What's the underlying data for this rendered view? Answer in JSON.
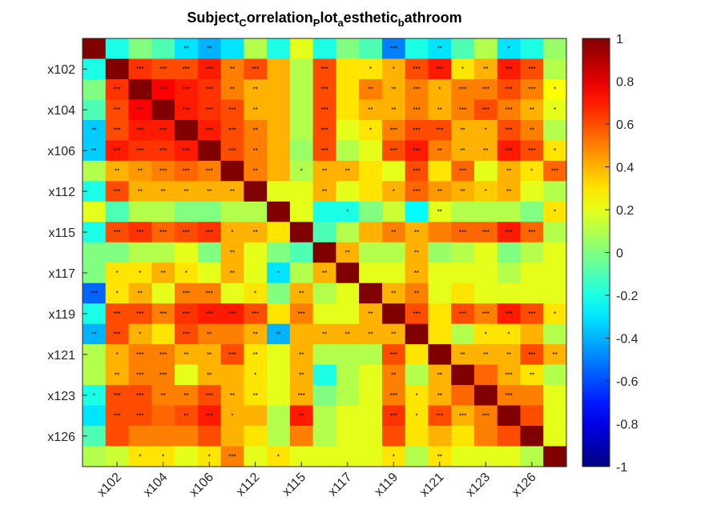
{
  "chart_data": {
    "type": "heatmap",
    "title": {
      "parts": [
        {
          "text": "Subject",
          "sub": false
        },
        {
          "text": "C",
          "sub": true
        },
        {
          "text": "orrelation",
          "sub": false
        },
        {
          "text": "P",
          "sub": true
        },
        {
          "text": "lot",
          "sub": false
        },
        {
          "text": "a",
          "sub": true
        },
        {
          "text": "esthetic",
          "sub": false
        },
        {
          "text": "b",
          "sub": true
        },
        {
          "text": "athroom",
          "sub": false
        }
      ]
    },
    "y_tick_labels": [
      "x102",
      "x104",
      "x106",
      "x112",
      "x115",
      "x117",
      "x119",
      "x121",
      "x123",
      "x126"
    ],
    "x_tick_labels": [
      "x102",
      "x104",
      "x106",
      "x112",
      "x115",
      "x117",
      "x119",
      "x121",
      "x123",
      "x126"
    ],
    "colorbar": {
      "colormap": "jet",
      "range": [
        -1,
        1
      ],
      "ticks": [
        "1",
        "0.8",
        "0.6",
        "0.4",
        "0.2",
        "0",
        "-0.2",
        "-0.4",
        "-0.6",
        "-0.8",
        "-1"
      ]
    },
    "matrix": [
      [
        1.0,
        -0.2,
        0.0,
        -0.1,
        -0.3,
        -0.4,
        -0.3,
        0.1,
        -0.2,
        0.2,
        -0.2,
        0.0,
        -0.1,
        -0.5,
        -0.2,
        -0.3,
        -0.1,
        0.1,
        -0.3,
        -0.2,
        0.05
      ],
      [
        -0.2,
        1.0,
        0.65,
        0.6,
        0.6,
        0.7,
        0.5,
        0.6,
        0.4,
        0.1,
        0.6,
        0.3,
        0.3,
        0.4,
        0.6,
        0.7,
        0.3,
        0.4,
        0.7,
        0.6,
        0.1
      ],
      [
        0.0,
        0.65,
        1.0,
        0.75,
        0.7,
        0.65,
        0.5,
        0.4,
        0.4,
        0.1,
        0.6,
        0.3,
        0.5,
        0.4,
        0.5,
        0.4,
        0.5,
        0.5,
        0.6,
        0.5,
        0.25
      ],
      [
        -0.1,
        0.6,
        0.75,
        1.0,
        0.7,
        0.65,
        0.6,
        0.4,
        0.4,
        0.1,
        0.6,
        0.3,
        0.4,
        0.4,
        0.5,
        0.4,
        0.5,
        0.6,
        0.5,
        0.4,
        0.2
      ],
      [
        -0.35,
        0.6,
        0.7,
        0.7,
        1.0,
        0.7,
        0.6,
        0.5,
        0.4,
        0.1,
        0.6,
        0.2,
        0.3,
        0.5,
        0.6,
        0.6,
        0.4,
        0.4,
        0.6,
        0.5,
        0.1
      ],
      [
        -0.35,
        0.7,
        0.65,
        0.65,
        0.7,
        1.0,
        0.6,
        0.5,
        0.4,
        0.05,
        0.6,
        0.1,
        0.2,
        0.6,
        0.7,
        0.5,
        0.4,
        0.4,
        0.7,
        0.6,
        0.3
      ],
      [
        0.1,
        0.4,
        0.45,
        0.5,
        0.55,
        0.5,
        1.0,
        0.5,
        0.4,
        0.1,
        0.4,
        0.4,
        0.3,
        0.2,
        0.6,
        0.3,
        0.55,
        0.2,
        0.4,
        0.3,
        0.55
      ],
      [
        -0.2,
        0.6,
        0.4,
        0.4,
        0.4,
        0.4,
        0.4,
        1.0,
        0.2,
        0.2,
        0.4,
        0.2,
        0.3,
        0.4,
        0.55,
        0.45,
        0.4,
        0.35,
        0.4,
        0.2,
        0.1
      ],
      [
        0.2,
        -0.1,
        0.1,
        0.1,
        0.0,
        0.0,
        0.1,
        0.1,
        1.0,
        0.2,
        -0.2,
        -0.2,
        0.0,
        0.15,
        -0.25,
        0.2,
        0.1,
        0.1,
        0.1,
        0.0,
        0.3
      ],
      [
        -0.2,
        0.6,
        0.65,
        0.55,
        0.6,
        0.65,
        0.4,
        0.4,
        0.3,
        1.0,
        -0.1,
        0.1,
        0.4,
        0.5,
        0.4,
        0.5,
        0.55,
        0.55,
        0.7,
        0.55,
        0.1
      ],
      [
        0.0,
        0.0,
        0.1,
        0.1,
        0.2,
        0.0,
        0.4,
        0.2,
        0.0,
        -0.1,
        1.0,
        0.4,
        0.1,
        0.1,
        0.4,
        0.05,
        0.1,
        0.2,
        0.0,
        0.1,
        0.2
      ],
      [
        0.0,
        0.3,
        0.3,
        0.4,
        0.3,
        0.2,
        0.4,
        0.2,
        -0.3,
        0.1,
        0.4,
        1.0,
        0.2,
        0.2,
        0.4,
        0.2,
        0.2,
        0.2,
        0.1,
        0.2,
        0.2
      ],
      [
        -0.55,
        0.3,
        0.4,
        0.2,
        0.5,
        0.5,
        0.2,
        0.3,
        0.0,
        0.4,
        0.1,
        0.2,
        1.0,
        0.4,
        0.5,
        0.2,
        0.3,
        0.2,
        0.2,
        0.2,
        0.2
      ],
      [
        -0.2,
        0.6,
        0.6,
        0.5,
        0.65,
        0.7,
        0.7,
        0.6,
        0.3,
        0.5,
        0.2,
        0.2,
        0.4,
        1.0,
        0.6,
        0.3,
        0.6,
        0.5,
        0.7,
        0.6,
        0.3
      ],
      [
        -0.4,
        0.6,
        0.4,
        0.3,
        0.6,
        0.5,
        0.5,
        0.4,
        -0.4,
        0.4,
        0.4,
        0.4,
        0.4,
        0.4,
        1.0,
        0.3,
        0.1,
        0.3,
        0.3,
        0.4,
        0.1
      ],
      [
        0.1,
        0.4,
        0.5,
        0.5,
        0.4,
        0.4,
        0.6,
        0.3,
        0.2,
        0.4,
        0.1,
        0.1,
        0.1,
        0.6,
        0.3,
        1.0,
        0.4,
        0.4,
        0.4,
        0.6,
        0.4
      ],
      [
        0.1,
        0.4,
        0.5,
        0.5,
        0.2,
        0.4,
        0.4,
        0.3,
        0.2,
        0.4,
        -0.2,
        0.1,
        0.2,
        0.5,
        0.1,
        0.4,
        1.0,
        0.55,
        0.4,
        0.3,
        0.1
      ],
      [
        -0.2,
        0.6,
        0.6,
        0.5,
        0.5,
        0.6,
        0.4,
        0.3,
        0.2,
        0.4,
        0.0,
        0.1,
        0.2,
        0.5,
        0.3,
        0.4,
        0.55,
        1.0,
        0.5,
        0.5,
        0.2
      ],
      [
        -0.3,
        0.6,
        0.6,
        0.55,
        0.6,
        0.7,
        0.4,
        0.4,
        0.1,
        0.7,
        0.1,
        0.2,
        0.2,
        0.65,
        0.3,
        0.6,
        0.4,
        0.5,
        1.0,
        0.6,
        0.2
      ],
      [
        -0.1,
        0.6,
        0.5,
        0.5,
        0.5,
        0.6,
        0.4,
        0.3,
        0.1,
        0.5,
        0.1,
        0.2,
        0.2,
        0.6,
        0.3,
        0.4,
        0.3,
        0.5,
        0.6,
        1.0,
        0.2
      ],
      [
        0.1,
        0.15,
        0.3,
        0.3,
        0.2,
        0.3,
        0.5,
        0.2,
        0.3,
        0.2,
        0.2,
        0.2,
        0.2,
        0.3,
        0.1,
        0.3,
        0.2,
        0.2,
        0.2,
        0.1,
        1.0
      ]
    ],
    "significance": [
      [
        "",
        "",
        "",
        "",
        "**",
        "**",
        "",
        "",
        "",
        "",
        "",
        "",
        "",
        "***",
        "",
        "**",
        "",
        "",
        "*",
        "",
        ""
      ],
      [
        "",
        "",
        "***",
        "***",
        "***",
        "***",
        "**",
        "***",
        "",
        "",
        "***",
        "",
        "*",
        "*",
        "***",
        "***",
        "*",
        "**",
        "***",
        "***",
        ""
      ],
      [
        "",
        "***",
        "",
        "***",
        "***",
        "***",
        "**",
        "**",
        "",
        "",
        "***",
        "",
        "**",
        "**",
        "***",
        "*",
        "***",
        "***",
        "***",
        "***",
        "*"
      ],
      [
        "",
        "***",
        "***",
        "",
        "***",
        "***",
        "***",
        "**",
        "",
        "",
        "***",
        "",
        "**",
        "**",
        "***",
        "**",
        "***",
        "***",
        "***",
        "**",
        "*"
      ],
      [
        "**",
        "***",
        "***",
        "***",
        "",
        "***",
        "***",
        "**",
        "",
        "",
        "***",
        "",
        "*",
        "***",
        "***",
        "***",
        "**",
        "*",
        "***",
        "**",
        ""
      ],
      [
        "**",
        "***",
        "***",
        "***",
        "***",
        "",
        "***",
        "**",
        "",
        "",
        "***",
        "",
        "",
        "***",
        "***",
        "**",
        "**",
        "**",
        "***",
        "***",
        "*"
      ],
      [
        "",
        "**",
        "**",
        "***",
        "***",
        "***",
        "",
        "**",
        "",
        "*",
        "**",
        "**",
        "",
        "",
        "***",
        "",
        "***",
        "",
        "**",
        "*",
        "***"
      ],
      [
        "",
        "***",
        "**",
        "**",
        "**",
        "**",
        "**",
        "",
        "",
        "",
        "**",
        "",
        "",
        "*",
        "***",
        "**",
        "**",
        "*",
        "**",
        "",
        ""
      ],
      [
        "",
        "",
        "",
        "",
        "",
        "",
        "",
        "",
        "",
        "",
        "",
        "*",
        "",
        "",
        "",
        "**",
        "",
        "",
        "",
        "",
        "*"
      ],
      [
        "",
        "***",
        "***",
        "***",
        "***",
        "***",
        "*",
        "**",
        "",
        "",
        "",
        "",
        "",
        "**",
        "**",
        "",
        "***",
        "***",
        "***",
        "***",
        ""
      ],
      [
        "",
        "",
        "",
        "",
        "",
        "",
        "**",
        "",
        "",
        "",
        "",
        "**",
        "",
        "",
        "**",
        "",
        "",
        "",
        "",
        "",
        ""
      ],
      [
        "",
        "*",
        "*",
        "**",
        "*",
        "",
        "**",
        "",
        "*",
        "",
        "**",
        "",
        "",
        "",
        "**",
        "",
        "",
        "",
        "",
        "",
        ""
      ],
      [
        "***",
        "*",
        "**",
        "",
        "***",
        "***",
        "",
        "*",
        "",
        "**",
        "",
        "",
        "",
        "**",
        "**",
        "",
        "",
        "",
        "",
        "",
        ""
      ],
      [
        "",
        "***",
        "***",
        "***",
        "***",
        "***",
        "***",
        "***",
        "",
        "***",
        "",
        "",
        "**",
        "",
        "***",
        "",
        "***",
        "***",
        "***",
        "***",
        "*"
      ],
      [
        "**",
        "***",
        "*",
        "",
        "***",
        "**",
        "",
        "**",
        "**",
        "",
        "**",
        "**",
        "**",
        "**",
        "",
        "",
        "",
        "*",
        "*",
        "",
        ""
      ],
      [
        "",
        "*",
        "***",
        "***",
        "**",
        "**",
        "***",
        "**",
        "",
        "**",
        "",
        "",
        "",
        "***",
        "",
        "",
        "**",
        "**",
        "**",
        "***",
        "**"
      ],
      [
        "",
        "**",
        "***",
        "***",
        "",
        "**",
        "",
        "*",
        "",
        "**",
        "",
        "",
        "",
        "**",
        "",
        "**",
        "",
        "",
        "***",
        "**",
        ""
      ],
      [
        "*",
        "***",
        "***",
        "**",
        "**",
        "***",
        "**",
        "**",
        "",
        "***",
        "",
        "",
        "",
        "***",
        "*",
        "**",
        "",
        "",
        "***",
        "",
        ""
      ],
      [
        "",
        "***",
        "***",
        "",
        "**",
        "***",
        "*",
        "",
        "",
        "**",
        "",
        "",
        "",
        "***",
        "*",
        "***",
        "***",
        "***",
        "",
        "",
        ""
      ],
      [
        "",
        "",
        "",
        "",
        "",
        "",
        "",
        "",
        "",
        "",
        "",
        "",
        "",
        "",
        "",
        "",
        "",
        "",
        "",
        "",
        ""
      ],
      [
        "",
        "",
        "*",
        "*",
        "",
        "*",
        "***",
        "",
        "*",
        "",
        "",
        "",
        "",
        "*",
        "",
        "**",
        "",
        "",
        "",
        "",
        ""
      ]
    ]
  }
}
